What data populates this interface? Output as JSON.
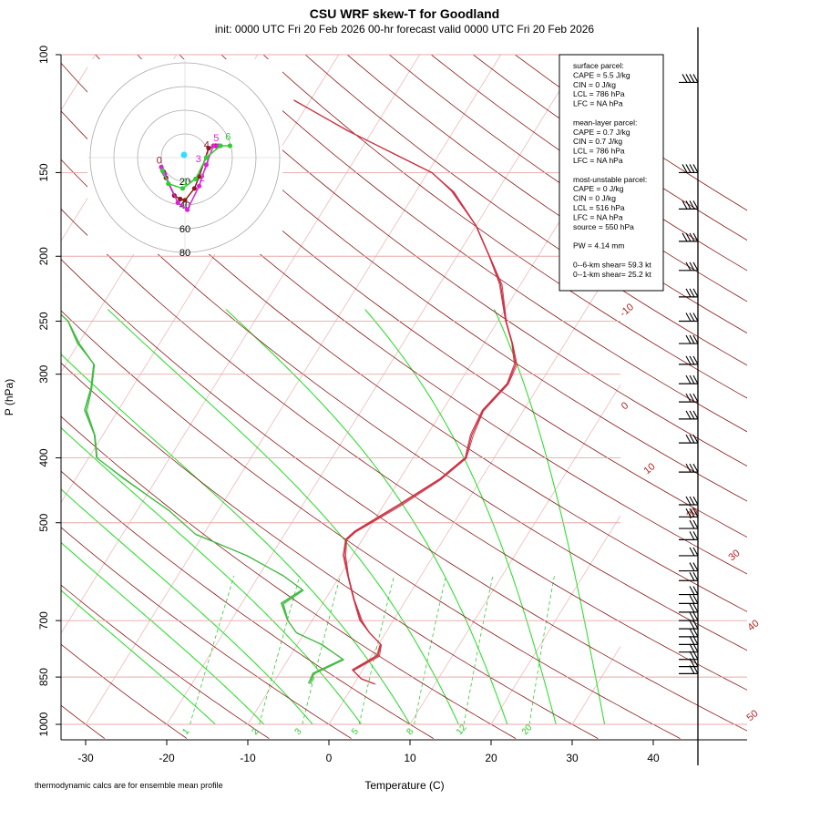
{
  "header": {
    "title": "CSU WRF skew-T for Goodland",
    "subtitle": "init: 0000 UTC Fri 20 Feb 2026     00-hr forecast valid 0000 UTC Fri 20 Feb 2026"
  },
  "footer_note": "thermodynamic calcs are for ensemble mean profile",
  "info_box": {
    "lines": [
      "surface parcel:",
      "CAPE = 5.5 J/kg",
      "CIN = 0 J/kg",
      "LCL = 786 hPa",
      "LFC = NA hPa",
      "",
      "mean-layer parcel:",
      "CAPE = 0.7 J/kg",
      "CIN = 0.7 J/kg",
      "LCL = 786 hPa",
      "LFC = NA hPa",
      "",
      "most-unstable parcel:",
      "CAPE = 0 J/kg",
      "CIN = 0 J/kg",
      "LCL = 516 hPa",
      "LFC = NA hPa",
      "source = 550 hPa",
      "",
      "PW =  4.14 mm",
      "",
      "0--6-km shear= 59.3 kt",
      "0--1-km shear= 25.2 kt"
    ]
  },
  "chart_data": {
    "type": "line",
    "title": "CSU WRF skew-T for Goodland",
    "xlabel": "Temperature (C)",
    "ylabel": "P (hPa)",
    "xlim": [
      -33,
      45
    ],
    "ylim": [
      1000,
      100
    ],
    "y_scale": "log",
    "x_ticks": [
      -30,
      -20,
      -10,
      0,
      10,
      20,
      30,
      40
    ],
    "y_ticks": [
      100,
      150,
      200,
      250,
      300,
      400,
      500,
      700,
      850,
      1000
    ],
    "isotherm_labels": [
      "-10",
      "0",
      "10",
      "20",
      "30",
      "40",
      "50"
    ],
    "mixing_ratio_labels": [
      "1",
      "2",
      "3",
      "5",
      "8",
      "12",
      "20"
    ],
    "series": [
      {
        "color": "#cc3344",
        "points": [
          [
            2.5,
            870
          ],
          [
            0.5,
            855
          ],
          [
            -1.2,
            830
          ],
          [
            0.8,
            790
          ],
          [
            0.3,
            760
          ],
          [
            -2,
            730
          ],
          [
            -4,
            700
          ],
          [
            -6.5,
            650
          ],
          [
            -9,
            600
          ],
          [
            -11,
            560
          ],
          [
            -12,
            530
          ],
          [
            -11.5,
            515
          ],
          [
            -8,
            470
          ],
          [
            -5,
            430
          ],
          [
            -3.5,
            400
          ],
          [
            -4.5,
            370
          ],
          [
            -5,
            340
          ],
          [
            -4,
            310
          ],
          [
            -4.5,
            290
          ],
          [
            -6.5,
            270
          ],
          [
            -9,
            250
          ],
          [
            -12.5,
            220
          ],
          [
            -16,
            200
          ],
          [
            -20,
            180
          ],
          [
            -25.5,
            160
          ],
          [
            -29.5,
            150
          ],
          [
            -36,
            140
          ],
          [
            -43,
            130
          ],
          [
            -52,
            117
          ]
        ]
      },
      {
        "color": "#44bb44",
        "points": [
          [
            -5.5,
            870
          ],
          [
            -5.8,
            840
          ],
          [
            -3.2,
            800
          ],
          [
            -7,
            760
          ],
          [
            -11,
            730
          ],
          [
            -13,
            700
          ],
          [
            -15,
            660
          ],
          [
            -13.5,
            630
          ],
          [
            -17,
            600
          ],
          [
            -23,
            560
          ],
          [
            -31,
            520
          ],
          [
            -36,
            480
          ],
          [
            -44,
            430
          ],
          [
            -49,
            400
          ],
          [
            -51,
            370
          ],
          [
            -54,
            340
          ],
          [
            -55,
            315
          ],
          [
            -56.5,
            290
          ],
          [
            -60,
            270
          ],
          [
            -63,
            250
          ],
          [
            -68,
            230
          ],
          [
            -72,
            210
          ],
          [
            -75,
            190
          ],
          [
            -80,
            175
          ]
        ]
      }
    ],
    "hodograph": {
      "rings_kt": [
        20,
        40,
        60,
        80
      ],
      "point_labels": [
        "0",
        "1",
        "2",
        "3",
        "4",
        "5",
        "6"
      ]
    }
  }
}
